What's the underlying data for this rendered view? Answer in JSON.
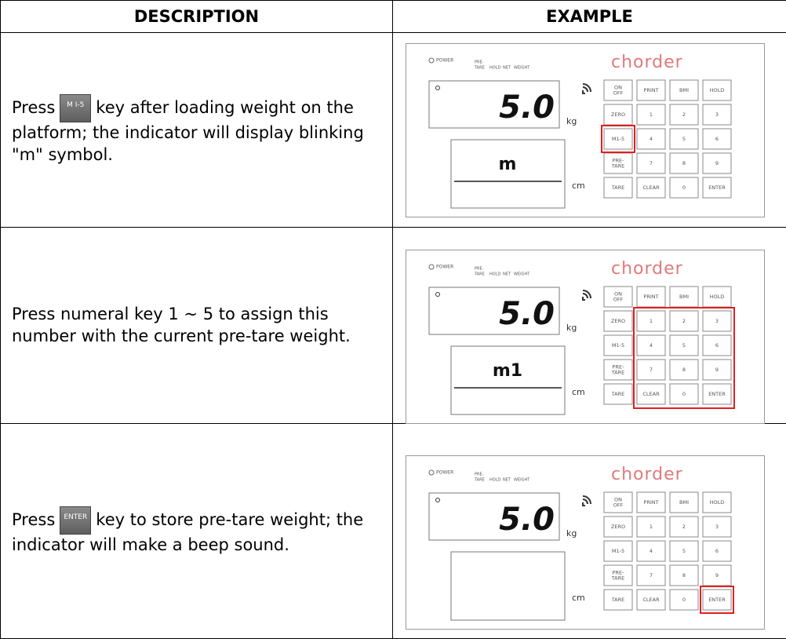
{
  "header": {
    "description": "DESCRIPTION",
    "example": "EXAMPLE"
  },
  "rows": [
    {
      "before": "Press",
      "key": "M I-5",
      "after": "key after loading weight on the platform; the indicator will display blinking \"m\" symbol.",
      "display": "m"
    },
    {
      "text": "Press numeral key 1 ~ 5 to assign this number with the current pre-tare weight.",
      "display": "m1"
    },
    {
      "before": "Press",
      "key": "ENTER",
      "after": "key to store pre-tare weight; the indicator will make a beep sound."
    }
  ],
  "panel": {
    "power": "POWER",
    "indicators": [
      "PRE-",
      "TARE",
      "HOLD",
      "NET",
      "WEIGHT"
    ],
    "brand": "chorder",
    "reading": "5.0",
    "weight_unit": "kg",
    "height_unit": "cm",
    "keys": [
      [
        "ON",
        "OFF"
      ],
      [
        "PRINT"
      ],
      [
        "BMI"
      ],
      [
        "HOLD"
      ],
      [
        "ZERO"
      ],
      [
        "1"
      ],
      [
        "2"
      ],
      [
        "3"
      ],
      [
        "M1-5"
      ],
      [
        "4"
      ],
      [
        "5"
      ],
      [
        "6"
      ],
      [
        "PRE-",
        "TARE"
      ],
      [
        "7"
      ],
      [
        "8"
      ],
      [
        "9"
      ],
      [
        "TARE"
      ],
      [
        "CLEAR"
      ],
      [
        "0"
      ],
      [
        "ENTER"
      ]
    ]
  }
}
